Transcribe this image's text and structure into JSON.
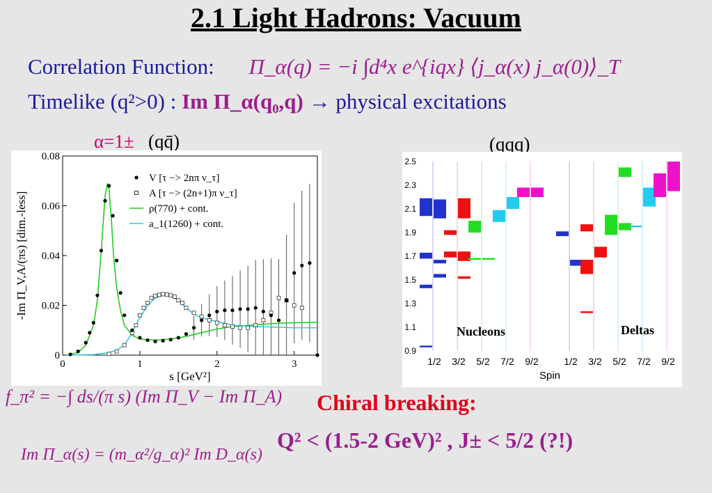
{
  "title": "2.1 Light Hadrons: Vacuum",
  "line1": {
    "label": "Correlation Function:",
    "equation": "Π_α(q) = −i ∫d⁴x e^{iqx} ⟨j_α(x) j_α(0)⟩_T"
  },
  "line2": {
    "prefix": "Timelike (q²>0) :",
    "expr": "Im Π_α(q₀,q)",
    "arrow": "→",
    "suffix": "physical excitations"
  },
  "left_label": {
    "alpha": "α=1±",
    "quark": "(qq̄)"
  },
  "right_label": "(qqq)",
  "formula1": "f_π² = −∫ ds/(π s) (Im Π_V − Im Π_A)",
  "formula2": "Im Π_α(s) = (m_α²/g_α)² Im D_α(s)",
  "chiral": {
    "heading": "Chiral breaking:",
    "condition": "Q² < (1.5-2 GeV)² , J± < 5/2 (?!)"
  },
  "colors": {
    "blue": "#1a1aa0",
    "magenta": "#9c1e8c",
    "red": "#e0001a"
  },
  "chart_data": [
    {
      "type": "line",
      "xlabel": "s [GeV²]",
      "ylabel": "-Im Π_V,A/(πs) [dim.-less]",
      "xlim": [
        0,
        3.3
      ],
      "ylim": [
        0,
        0.08
      ],
      "xticks": [
        "0",
        "1",
        "2",
        "3"
      ],
      "yticks": [
        "0",
        "0.02",
        "0.04",
        "0.06",
        "0.08"
      ],
      "legend": [
        {
          "name": "V [τ −> 2nπ ν_τ]",
          "marker": "filled-dot"
        },
        {
          "name": "A [τ −> (2n+1)π ν_τ]",
          "marker": "open-square"
        },
        {
          "name": "ρ(770) + cont.",
          "color": "#22cc22"
        },
        {
          "name": "a_1(1260) + cont.",
          "color": "#33c8e8"
        }
      ],
      "series": [
        {
          "name": "ρ(770) + cont.",
          "x": [
            0.05,
            0.2,
            0.3,
            0.4,
            0.45,
            0.5,
            0.55,
            0.58,
            0.6,
            0.63,
            0.66,
            0.7,
            0.75,
            0.8,
            0.9,
            1.0,
            1.2,
            1.4,
            1.6,
            1.8,
            2.0,
            2.2,
            2.5,
            2.8,
            3.0,
            3.3
          ],
          "y": [
            0,
            0.001,
            0.004,
            0.012,
            0.022,
            0.042,
            0.064,
            0.069,
            0.067,
            0.055,
            0.04,
            0.027,
            0.018,
            0.012,
            0.008,
            0.0065,
            0.006,
            0.0065,
            0.0075,
            0.009,
            0.0105,
            0.0115,
            0.0122,
            0.0128,
            0.013,
            0.0132
          ]
        },
        {
          "name": "a_1(1260) + cont.",
          "x": [
            0.05,
            0.4,
            0.6,
            0.7,
            0.8,
            0.9,
            1.0,
            1.1,
            1.2,
            1.3,
            1.4,
            1.5,
            1.6,
            1.7,
            1.8,
            2.0,
            2.2,
            2.5,
            2.8,
            3.0,
            3.3
          ],
          "y": [
            0,
            0.0002,
            0.001,
            0.002,
            0.004,
            0.009,
            0.015,
            0.02,
            0.023,
            0.024,
            0.0237,
            0.022,
            0.019,
            0.0165,
            0.015,
            0.0135,
            0.012,
            0.0115,
            0.0112,
            0.011,
            0.011
          ]
        },
        {
          "name": "V",
          "x": [
            0.1,
            0.2,
            0.3,
            0.35,
            0.4,
            0.45,
            0.5,
            0.55,
            0.6,
            0.65,
            0.7,
            0.75,
            0.8,
            0.9,
            1.0,
            1.1,
            1.2,
            1.3,
            1.4,
            1.5,
            1.6,
            1.7,
            1.8,
            1.9,
            2.0,
            2.1,
            2.2,
            2.3,
            2.4,
            2.5,
            2.6,
            2.7,
            2.8,
            2.9,
            3.0,
            3.1,
            3.2,
            3.3
          ],
          "y": [
            0.0003,
            0.0015,
            0.005,
            0.009,
            0.013,
            0.024,
            0.042,
            0.062,
            0.068,
            0.056,
            0.038,
            0.025,
            0.016,
            0.01,
            0.007,
            0.006,
            0.0055,
            0.0058,
            0.0062,
            0.007,
            0.0085,
            0.011,
            0.014,
            0.016,
            0.0175,
            0.018,
            0.018,
            0.0185,
            0.0185,
            0.019,
            0.0175,
            0.016,
            0.014,
            0.022,
            0.033,
            0.036,
            0.037,
            0.0
          ]
        },
        {
          "name": "A",
          "x": [
            0.6,
            0.7,
            0.8,
            0.9,
            0.95,
            1.0,
            1.05,
            1.1,
            1.15,
            1.2,
            1.25,
            1.3,
            1.35,
            1.4,
            1.45,
            1.5,
            1.55,
            1.6,
            1.7,
            1.8,
            1.9,
            2.0,
            2.1,
            2.2,
            2.3,
            2.4,
            2.5,
            2.6,
            2.7,
            2.8,
            2.9,
            3.0,
            3.1
          ],
          "y": [
            0.0005,
            0.0015,
            0.004,
            0.009,
            0.012,
            0.016,
            0.019,
            0.021,
            0.023,
            0.0238,
            0.0242,
            0.0245,
            0.0243,
            0.024,
            0.0235,
            0.022,
            0.021,
            0.019,
            0.017,
            0.0155,
            0.014,
            0.013,
            0.012,
            0.0115,
            0.011,
            0.011,
            0.012,
            0.014,
            0.017,
            0.023,
            0.022,
            0.02,
            0.019
          ]
        }
      ]
    },
    {
      "type": "bar",
      "xlabel": "Spin",
      "xticks": [
        "1/2",
        "3/2",
        "5/2",
        "7/2",
        "9/2",
        "1/2",
        "3/2",
        "5/2",
        "7/2",
        "9/2"
      ],
      "yticks": [
        "0.9",
        "1.1",
        "1.3",
        "1.5",
        "1.7",
        "1.9",
        "2.1",
        "2.3",
        "2.5"
      ],
      "ylim": [
        0.9,
        2.5
      ],
      "annotations": [
        "Nucleons",
        "Deltas"
      ],
      "states": [
        {
          "group": "Nucleons",
          "spin": "1/2",
          "col": 0,
          "ymin": 0.935,
          "ymax": 0.945,
          "color": "#2233cc"
        },
        {
          "group": "Nucleons",
          "spin": "1/2",
          "col": 0,
          "ymin": 1.43,
          "ymax": 1.46,
          "color": "#2233cc"
        },
        {
          "group": "Nucleons",
          "spin": "1/2",
          "col": 0,
          "ymin": 1.68,
          "ymax": 1.73,
          "color": "#2233cc"
        },
        {
          "group": "Nucleons",
          "spin": "1/2",
          "col": 0,
          "ymin": 2.04,
          "ymax": 2.19,
          "color": "#2233cc"
        },
        {
          "group": "Nucleons",
          "spin": "1/2",
          "col": 1,
          "ymin": 1.52,
          "ymax": 1.55,
          "color": "#2233cc"
        },
        {
          "group": "Nucleons",
          "spin": "1/2",
          "col": 1,
          "ymin": 1.64,
          "ymax": 1.67,
          "color": "#2233cc"
        },
        {
          "group": "Nucleons",
          "spin": "1/2",
          "col": 1,
          "ymin": 2.02,
          "ymax": 2.18,
          "color": "#2233cc"
        },
        {
          "group": "Nucleons",
          "spin": "3/2",
          "col": 0,
          "ymin": 1.88,
          "ymax": 1.92,
          "color": "#ee1111"
        },
        {
          "group": "Nucleons",
          "spin": "3/2",
          "col": 0,
          "ymin": 1.69,
          "ymax": 1.74,
          "color": "#ee1111"
        },
        {
          "group": "Nucleons",
          "spin": "3/2",
          "col": 1,
          "ymin": 1.51,
          "ymax": 1.53,
          "color": "#ee1111"
        },
        {
          "group": "Nucleons",
          "spin": "3/2",
          "col": 1,
          "ymin": 1.66,
          "ymax": 1.74,
          "color": "#ee1111"
        },
        {
          "group": "Nucleons",
          "spin": "3/2",
          "col": 1,
          "ymin": 2.02,
          "ymax": 2.19,
          "color": "#ee1111"
        },
        {
          "group": "Nucleons",
          "spin": "5/2",
          "col": 0,
          "ymin": 1.675,
          "ymax": 1.685,
          "color": "#22dd22"
        },
        {
          "group": "Nucleons",
          "spin": "5/2",
          "col": 0,
          "ymin": 1.9,
          "ymax": 2.0,
          "color": "#22dd22"
        },
        {
          "group": "Nucleons",
          "spin": "5/2",
          "col": 1,
          "ymin": 1.675,
          "ymax": 1.685,
          "color": "#22dd22"
        },
        {
          "group": "Nucleons",
          "spin": "7/2",
          "col": 0,
          "ymin": 1.99,
          "ymax": 2.09,
          "color": "#22ccee"
        },
        {
          "group": "Nucleons",
          "spin": "7/2",
          "col": 1,
          "ymin": 2.1,
          "ymax": 2.2,
          "color": "#22ccee"
        },
        {
          "group": "Nucleons",
          "spin": "9/2",
          "col": 0,
          "ymin": 2.2,
          "ymax": 2.28,
          "color": "#ee11cc"
        },
        {
          "group": "Nucleons",
          "spin": "9/2",
          "col": 1,
          "ymin": 2.2,
          "ymax": 2.28,
          "color": "#ee11cc"
        },
        {
          "group": "Deltas",
          "spin": "1/2",
          "col": 0,
          "ymin": 1.87,
          "ymax": 1.91,
          "color": "#2233cc"
        },
        {
          "group": "Deltas",
          "spin": "1/2",
          "col": 1,
          "ymin": 1.62,
          "ymax": 1.67,
          "color": "#2233cc"
        },
        {
          "group": "Deltas",
          "spin": "3/2",
          "col": 0,
          "ymin": 1.225,
          "ymax": 1.235,
          "color": "#ee1111"
        },
        {
          "group": "Deltas",
          "spin": "3/2",
          "col": 0,
          "ymin": 1.55,
          "ymax": 1.67,
          "color": "#ee1111"
        },
        {
          "group": "Deltas",
          "spin": "3/2",
          "col": 0,
          "ymin": 1.91,
          "ymax": 1.97,
          "color": "#ee1111"
        },
        {
          "group": "Deltas",
          "spin": "3/2",
          "col": 1,
          "ymin": 1.69,
          "ymax": 1.78,
          "color": "#ee1111"
        },
        {
          "group": "Deltas",
          "spin": "5/2",
          "col": 0,
          "ymin": 1.88,
          "ymax": 2.05,
          "color": "#22dd22"
        },
        {
          "group": "Deltas",
          "spin": "5/2",
          "col": 1,
          "ymin": 1.92,
          "ymax": 1.98,
          "color": "#22dd22"
        },
        {
          "group": "Deltas",
          "spin": "5/2",
          "col": 1,
          "ymin": 2.37,
          "ymax": 2.45,
          "color": "#22dd22"
        },
        {
          "group": "Deltas",
          "spin": "7/2",
          "col": 0,
          "ymin": 1.945,
          "ymax": 1.96,
          "color": "#22ccee"
        },
        {
          "group": "Deltas",
          "spin": "7/2",
          "col": 1,
          "ymin": 2.12,
          "ymax": 2.28,
          "color": "#22ccee"
        },
        {
          "group": "Deltas",
          "spin": "9/2",
          "col": 0,
          "ymin": 2.2,
          "ymax": 2.3,
          "color": "#ee11cc"
        },
        {
          "group": "Deltas",
          "spin": "9/2",
          "col": 0,
          "ymin": 2.28,
          "ymax": 2.4,
          "color": "#ee11cc"
        },
        {
          "group": "Deltas",
          "spin": "9/2",
          "col": 1,
          "ymin": 2.25,
          "ymax": 2.5,
          "color": "#ee11cc"
        }
      ]
    }
  ]
}
